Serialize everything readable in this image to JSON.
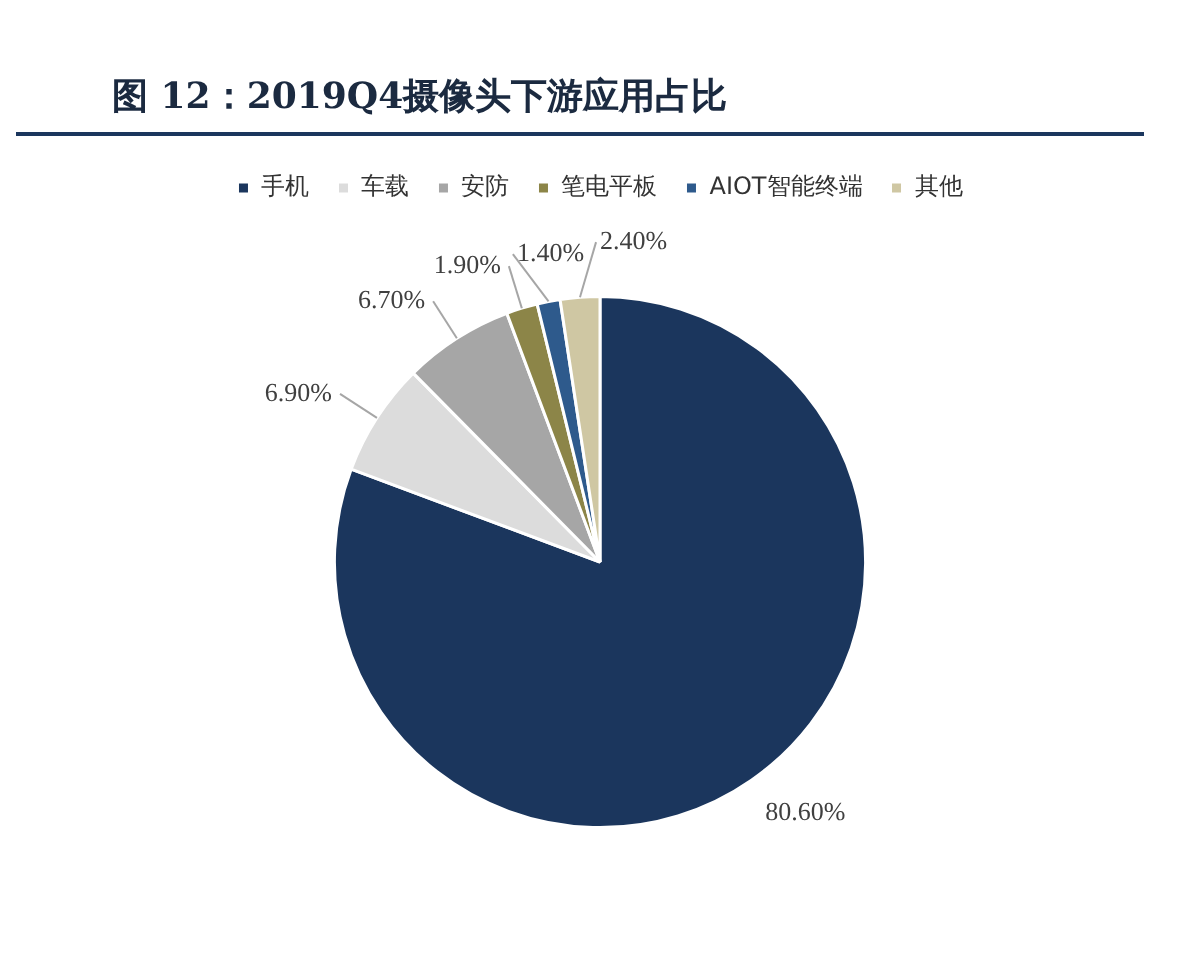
{
  "chart_data": {
    "type": "pie",
    "title": "图 12：2019Q4摄像头下游应用占比",
    "categories": [
      "手机",
      "车载",
      "安防",
      "笔电平板",
      "AIOT智能终端",
      "其他"
    ],
    "values": [
      80.6,
      6.9,
      6.7,
      1.9,
      1.4,
      2.4
    ],
    "colors": [
      "#1b365d",
      "#dcdcdc",
      "#a6a6a6",
      "#8c8548",
      "#2e5a8c",
      "#cfc7a3"
    ],
    "value_labels": [
      "80.60%",
      "6.90%",
      "6.70%",
      "1.90%",
      "1.40%",
      "2.40%"
    ],
    "legend": "top"
  }
}
